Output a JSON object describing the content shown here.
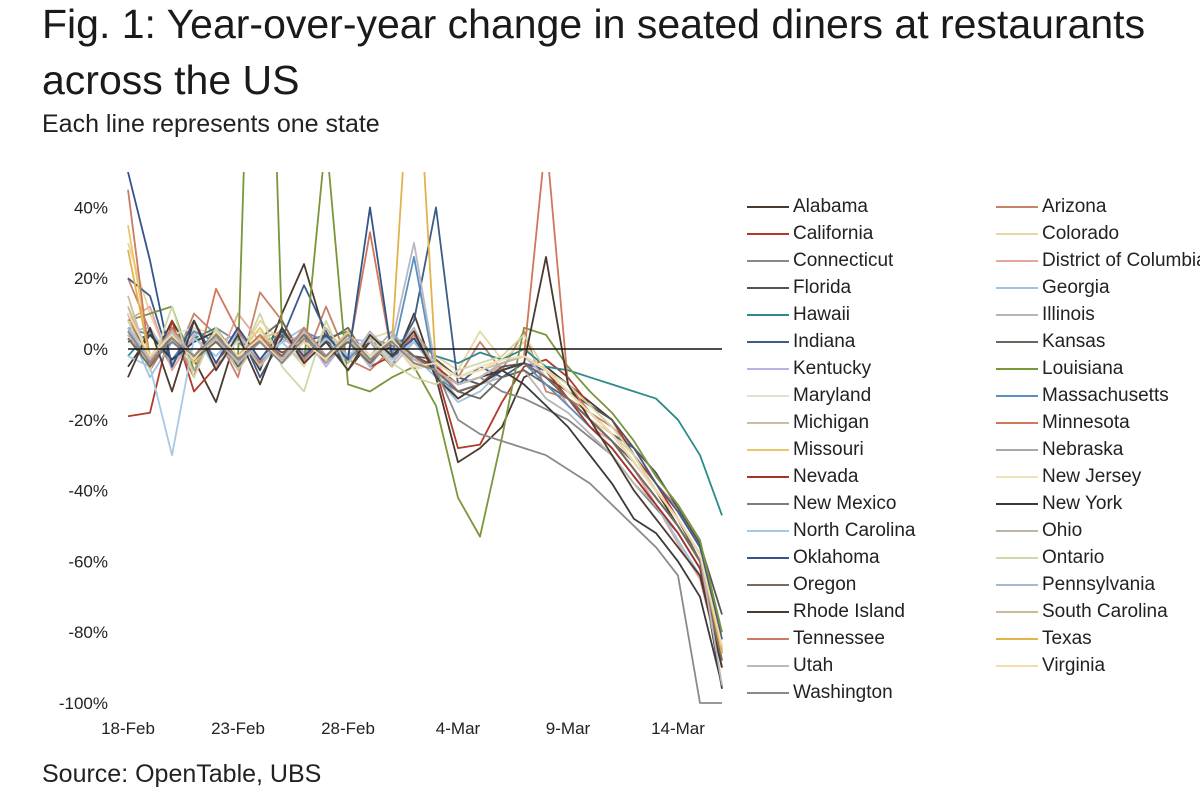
{
  "title": "Fig. 1: Year-over-year change in seated diners at restaurants\nacross the US",
  "subtitle": "Each line represents one state",
  "source": "Source: OpenTable, UBS",
  "chart_data": {
    "type": "line",
    "x_ticks": [
      "18-Feb",
      "23-Feb",
      "28-Feb",
      "4-Mar",
      "9-Mar",
      "14-Mar"
    ],
    "x_tick_index": [
      0,
      5,
      10,
      15,
      20,
      25
    ],
    "x_count": 28,
    "y_ticks": [
      "40%",
      "20%",
      "0%",
      "-20%",
      "-40%",
      "-60%",
      "-80%",
      "-100%"
    ],
    "y_tick_values": [
      40,
      20,
      0,
      -20,
      -40,
      -60,
      -80,
      -100
    ],
    "ylim": [
      -100,
      50
    ],
    "zero_line": true,
    "legend_position": "right",
    "series": [
      {
        "name": "Alabama",
        "color": "#4a3a2e",
        "values": [
          10,
          -5,
          8,
          -3,
          -15,
          5,
          -6,
          10,
          24,
          3,
          -6,
          2,
          -5,
          10,
          -8,
          -32,
          -28,
          -22,
          -8,
          -5,
          -10,
          -15,
          -20,
          -30,
          -40,
          -50,
          -60,
          -96
        ]
      },
      {
        "name": "Arizona",
        "color": "#c8826a",
        "values": [
          20,
          5,
          -5,
          10,
          4,
          -8,
          16,
          8,
          -4,
          12,
          -3,
          -6,
          0,
          5,
          -3,
          -8,
          2,
          -6,
          5,
          -12,
          -14,
          -18,
          -22,
          -28,
          -38,
          -45,
          -55,
          -82
        ]
      },
      {
        "name": "California",
        "color": "#b23a2a",
        "values": [
          -19,
          -18,
          8,
          -12,
          -5,
          6,
          -3,
          4,
          2,
          -4,
          3,
          -5,
          -2,
          2,
          -6,
          -28,
          -27,
          -15,
          -5,
          -3,
          -8,
          -16,
          -20,
          -30,
          -38,
          -48,
          -60,
          -88
        ]
      },
      {
        "name": "Colorado",
        "color": "#e8d6a4",
        "values": [
          30,
          10,
          -5,
          6,
          4,
          -3,
          8,
          2,
          -5,
          6,
          -4,
          3,
          5,
          -6,
          -2,
          -6,
          5,
          -3,
          2,
          -8,
          -14,
          -20,
          -24,
          -30,
          -40,
          -48,
          -58,
          -85
        ]
      },
      {
        "name": "Connecticut",
        "color": "#888888",
        "values": [
          5,
          -2,
          3,
          -4,
          6,
          2,
          -3,
          5,
          -1,
          4,
          -2,
          3,
          1,
          -3,
          -5,
          -10,
          -8,
          -12,
          -14,
          -17,
          -20,
          -25,
          -30,
          -38,
          -45,
          -52,
          -62,
          -80
        ]
      },
      {
        "name": "District of Columbia",
        "color": "#e6a6a0",
        "values": [
          8,
          12,
          -6,
          4,
          -5,
          10,
          2,
          -4,
          6,
          -3,
          5,
          -2,
          2,
          -5,
          -4,
          -12,
          -10,
          -4,
          -2,
          -6,
          -16,
          -22,
          -26,
          -34,
          -44,
          -55,
          -65,
          -90
        ]
      },
      {
        "name": "Florida",
        "color": "#555555",
        "values": [
          2,
          4,
          -3,
          5,
          2,
          -2,
          3,
          -1,
          2,
          4,
          -3,
          2,
          0,
          -2,
          -3,
          -8,
          -10,
          -5,
          -4,
          -8,
          -12,
          -16,
          -20,
          -28,
          -35,
          -45,
          -55,
          -75
        ]
      },
      {
        "name": "Georgia",
        "color": "#9cc3e0",
        "values": [
          6,
          -8,
          2,
          5,
          -6,
          3,
          -4,
          2,
          6,
          -2,
          3,
          -5,
          4,
          -2,
          -8,
          -15,
          -12,
          -6,
          -4,
          -10,
          -16,
          -22,
          -28,
          -36,
          -44,
          -54,
          -64,
          -90
        ]
      },
      {
        "name": "Hawaii",
        "color": "#2d8a8c",
        "values": [
          -2,
          5,
          -4,
          3,
          6,
          -3,
          2,
          4,
          -2,
          3,
          5,
          -4,
          2,
          3,
          -2,
          -4,
          -1,
          -3,
          0,
          -5,
          -6,
          -8,
          -10,
          -12,
          -14,
          -20,
          -30,
          -47
        ]
      },
      {
        "name": "Illinois",
        "color": "#b6b6b6",
        "values": [
          4,
          -3,
          5,
          -2,
          2,
          4,
          -5,
          3,
          -1,
          2,
          -4,
          5,
          -2,
          6,
          -6,
          -14,
          -10,
          -8,
          -6,
          -14,
          -18,
          -24,
          -30,
          -38,
          -44,
          -52,
          -62,
          -85
        ]
      },
      {
        "name": "Indiana",
        "color": "#3e5c8a",
        "values": [
          20,
          15,
          -5,
          8,
          -4,
          6,
          -8,
          3,
          18,
          5,
          -6,
          4,
          -3,
          8,
          40,
          -10,
          -5,
          -8,
          -4,
          -6,
          -12,
          -18,
          -24,
          -28,
          -38,
          -46,
          -56,
          -82
        ]
      },
      {
        "name": "Kansas",
        "color": "#6d655c",
        "values": [
          10,
          -4,
          6,
          -2,
          5,
          -5,
          3,
          8,
          -3,
          2,
          6,
          -4,
          3,
          -2,
          -6,
          -12,
          -14,
          -8,
          -6,
          -10,
          -14,
          -20,
          -26,
          -32,
          -40,
          -48,
          -60,
          -88
        ]
      },
      {
        "name": "Kentucky",
        "color": "#b9b4de",
        "values": [
          5,
          6,
          -4,
          3,
          -2,
          5,
          -3,
          2,
          4,
          -5,
          3,
          2,
          -4,
          3,
          -6,
          -10,
          -8,
          -4,
          -2,
          -8,
          -14,
          -20,
          -26,
          -34,
          -42,
          -50,
          -60,
          -84
        ]
      },
      {
        "name": "Louisiana",
        "color": "#7a963a",
        "values": [
          8,
          10,
          12,
          -6,
          4,
          -3,
          200,
          5,
          -4,
          60,
          -10,
          -12,
          -8,
          -5,
          -16,
          -42,
          -53,
          -25,
          6,
          4,
          -5,
          -12,
          -18,
          -26,
          -36,
          -44,
          -54,
          -80
        ]
      },
      {
        "name": "Maryland",
        "color": "#e6e2ca",
        "values": [
          12,
          -2,
          4,
          6,
          -4,
          2,
          5,
          -3,
          6,
          -2,
          4,
          -3,
          2,
          -6,
          -4,
          -8,
          -5,
          -3,
          -2,
          -6,
          -12,
          -18,
          -24,
          -32,
          -40,
          -48,
          -58,
          -84
        ]
      },
      {
        "name": "Massachusetts",
        "color": "#5a8fc0",
        "values": [
          6,
          4,
          -3,
          5,
          2,
          -4,
          3,
          -2,
          5,
          2,
          -3,
          4,
          -2,
          26,
          -8,
          -12,
          -10,
          -6,
          -4,
          -10,
          -16,
          -22,
          -28,
          -36,
          -44,
          -52,
          -62,
          -86
        ]
      },
      {
        "name": "Michigan",
        "color": "#c9bea0",
        "values": [
          15,
          -5,
          6,
          -3,
          4,
          -6,
          3,
          5,
          -4,
          6,
          -2,
          3,
          -5,
          2,
          -4,
          -8,
          -6,
          -4,
          -2,
          -6,
          -12,
          -18,
          -24,
          -32,
          -40,
          -48,
          -58,
          -86
        ]
      },
      {
        "name": "Minnesota",
        "color": "#d0775c",
        "values": [
          10,
          -6,
          4,
          -8,
          17,
          5,
          -4,
          6,
          -3,
          4,
          -2,
          33,
          -2,
          4,
          -6,
          -10,
          -8,
          -4,
          -2,
          60,
          -10,
          -18,
          -24,
          -32,
          -40,
          -48,
          -58,
          -84
        ]
      },
      {
        "name": "Missouri",
        "color": "#e8c86a",
        "values": [
          35,
          -2,
          5,
          -4,
          3,
          -2,
          6,
          -3,
          4,
          -2,
          5,
          -4,
          3,
          -2,
          -6,
          -10,
          -8,
          -4,
          -2,
          -6,
          -12,
          -18,
          -24,
          -32,
          -40,
          -48,
          -58,
          -86
        ]
      },
      {
        "name": "Nebraska",
        "color": "#a8a8a8",
        "values": [
          8,
          -4,
          3,
          -6,
          5,
          -3,
          4,
          -2,
          6,
          -4,
          3,
          -2,
          5,
          -3,
          -6,
          -12,
          -10,
          -6,
          -4,
          -8,
          -14,
          -20,
          -26,
          -34,
          -42,
          -50,
          -60,
          -86
        ]
      },
      {
        "name": "Nevada",
        "color": "#a93226",
        "values": [
          4,
          -3,
          5,
          -2,
          4,
          -4,
          3,
          -2,
          5,
          -3,
          2,
          -4,
          3,
          -2,
          -5,
          -10,
          -8,
          -4,
          -2,
          -6,
          -14,
          -22,
          -28,
          -36,
          -44,
          -52,
          -62,
          -90
        ]
      },
      {
        "name": "New Jersey",
        "color": "#f0e2b8",
        "values": [
          6,
          -2,
          4,
          -3,
          5,
          -2,
          3,
          -4,
          2,
          -3,
          4,
          -2,
          3,
          -5,
          -4,
          -8,
          -6,
          -3,
          -2,
          -6,
          -12,
          -18,
          -24,
          -32,
          -40,
          -48,
          -58,
          -86
        ]
      },
      {
        "name": "New Mexico",
        "color": "#7d7d7d",
        "values": [
          3,
          -4,
          2,
          -3,
          4,
          -2,
          3,
          -4,
          2,
          -3,
          4,
          -2,
          3,
          -2,
          -6,
          -12,
          -10,
          -6,
          -4,
          -8,
          -14,
          -20,
          -26,
          -34,
          -42,
          -50,
          -60,
          -90
        ]
      },
      {
        "name": "New York",
        "color": "#3a3a3a",
        "values": [
          -5,
          4,
          -3,
          2,
          5,
          -3,
          2,
          -4,
          3,
          -2,
          4,
          -3,
          2,
          -4,
          -6,
          -10,
          -8,
          -6,
          -10,
          -16,
          -22,
          -30,
          -38,
          -48,
          -52,
          -60,
          -70,
          -95
        ]
      },
      {
        "name": "North Carolina",
        "color": "#a8c8e6",
        "values": [
          -2,
          -5,
          -30,
          3,
          -2,
          4,
          -3,
          2,
          -4,
          3,
          -2,
          4,
          -3,
          2,
          -6,
          -12,
          -10,
          -6,
          -4,
          -8,
          -14,
          -20,
          -26,
          -34,
          -42,
          -50,
          -60,
          -88
        ]
      },
      {
        "name": "Ohio",
        "color": "#bcb4a8",
        "values": [
          5,
          -3,
          4,
          -2,
          3,
          -4,
          2,
          -3,
          4,
          -2,
          3,
          -4,
          2,
          -3,
          -6,
          -10,
          -8,
          -4,
          -2,
          -6,
          -12,
          -18,
          -24,
          -32,
          -40,
          -48,
          -58,
          -84
        ]
      },
      {
        "name": "Oklahoma",
        "color": "#34558a",
        "values": [
          50,
          25,
          -5,
          8,
          -4,
          6,
          -3,
          5,
          -2,
          4,
          -3,
          40,
          -2,
          3,
          -6,
          -12,
          -10,
          -6,
          -4,
          -8,
          -14,
          -20,
          -26,
          -34,
          -42,
          -50,
          -60,
          -86
        ]
      },
      {
        "name": "Ontario",
        "color": "#cfd8a8",
        "values": [
          8,
          -6,
          12,
          -8,
          6,
          -4,
          10,
          -5,
          -12,
          8,
          -6,
          4,
          -4,
          -8,
          -10,
          -6,
          -4,
          -2,
          4,
          -6,
          -10,
          -16,
          -22,
          -30,
          -40,
          -48,
          -58,
          -85
        ]
      },
      {
        "name": "Oregon",
        "color": "#7a6a5a",
        "values": [
          3,
          -5,
          4,
          -3,
          2,
          -4,
          3,
          -2,
          4,
          -3,
          2,
          -4,
          3,
          -2,
          -6,
          -12,
          -10,
          -6,
          -4,
          -8,
          -14,
          -20,
          -26,
          -34,
          -42,
          -50,
          -60,
          -88
        ]
      },
      {
        "name": "Pennsylvania",
        "color": "#aab6d6",
        "values": [
          6,
          -3,
          5,
          -2,
          4,
          -3,
          2,
          -4,
          3,
          -2,
          4,
          -3,
          2,
          -4,
          -6,
          -10,
          -8,
          -4,
          -2,
          -6,
          -12,
          -18,
          -24,
          -32,
          -40,
          -48,
          -58,
          -85
        ]
      },
      {
        "name": "Rhode Island",
        "color": "#4a3a30",
        "values": [
          -8,
          6,
          -12,
          8,
          -6,
          4,
          -10,
          6,
          -4,
          2,
          -6,
          4,
          -2,
          5,
          -8,
          -14,
          -10,
          -6,
          -4,
          26,
          -10,
          -20,
          -30,
          -40,
          -48,
          -56,
          -64,
          -90
        ]
      },
      {
        "name": "South Carolina",
        "color": "#c8bc98",
        "values": [
          12,
          -4,
          6,
          -3,
          5,
          -2,
          4,
          -3,
          6,
          -2,
          4,
          -3,
          2,
          -4,
          -6,
          -10,
          -8,
          -4,
          -2,
          -6,
          -12,
          -18,
          -24,
          -32,
          -40,
          -48,
          -58,
          -86
        ]
      },
      {
        "name": "Tennessee",
        "color": "#cc7a62",
        "values": [
          45,
          -4,
          6,
          -3,
          5,
          -2,
          4,
          -3,
          6,
          -2,
          4,
          -3,
          2,
          -4,
          -6,
          -10,
          -8,
          -4,
          -2,
          -6,
          -12,
          -18,
          -24,
          -32,
          -40,
          -48,
          -58,
          -86
        ]
      },
      {
        "name": "Texas",
        "color": "#e2b34a",
        "values": [
          28,
          -3,
          5,
          -2,
          4,
          -3,
          2,
          -4,
          3,
          -2,
          4,
          -3,
          2,
          100,
          -6,
          -10,
          -8,
          -4,
          -2,
          -6,
          -12,
          -18,
          -24,
          -32,
          -40,
          -48,
          -58,
          -86
        ]
      },
      {
        "name": "Utah",
        "color": "#b8b8c0",
        "values": [
          4,
          -3,
          5,
          -2,
          3,
          -4,
          2,
          -3,
          5,
          -2,
          4,
          -3,
          2,
          30,
          -6,
          -10,
          -8,
          -4,
          -2,
          -6,
          -12,
          -18,
          -24,
          -32,
          -40,
          -48,
          -58,
          -95
        ]
      },
      {
        "name": "Virginia",
        "color": "#f2deaa",
        "values": [
          10,
          -2,
          4,
          -3,
          5,
          -2,
          3,
          -4,
          2,
          -3,
          4,
          -2,
          3,
          -5,
          -4,
          -8,
          -6,
          -3,
          -2,
          -6,
          -12,
          -18,
          -24,
          -32,
          -40,
          -48,
          -58,
          -84
        ]
      },
      {
        "name": "Washington",
        "color": "#8a8a8a",
        "values": [
          5,
          -4,
          3,
          -2,
          4,
          -3,
          2,
          -4,
          3,
          -2,
          4,
          -3,
          2,
          -4,
          -6,
          -20,
          -24,
          -26,
          -28,
          -30,
          -34,
          -38,
          -44,
          -50,
          -56,
          -64,
          -100,
          -100
        ]
      }
    ]
  }
}
